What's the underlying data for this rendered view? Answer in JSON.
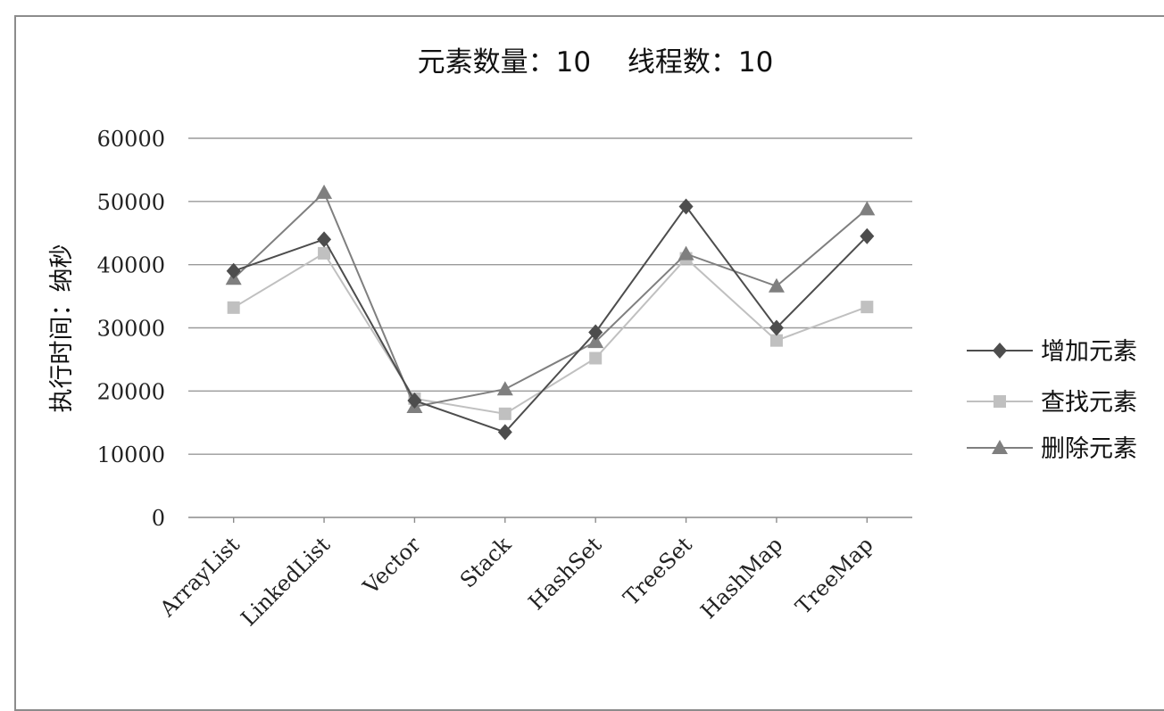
{
  "chart_data": {
    "type": "line",
    "title": "元素数量：10　 线程数：10",
    "xlabel": "",
    "ylabel": "执行时间：纳秒",
    "categories": [
      "ArrayList",
      "LinkedList",
      "Vector",
      "Stack",
      "HashSet",
      "TreeSet",
      "HashMap",
      "TreeMap"
    ],
    "ylim": [
      0,
      60000
    ],
    "yticks": [
      0,
      10000,
      20000,
      30000,
      40000,
      50000,
      60000
    ],
    "grid": true,
    "legend_position": "right",
    "series": [
      {
        "name": "增加元素",
        "marker": "diamond",
        "color": "#4d4d4d",
        "values": [
          39000,
          44000,
          18500,
          13500,
          29300,
          49200,
          30000,
          44500
        ]
      },
      {
        "name": "查找元素",
        "marker": "square",
        "color": "#c0c0c0",
        "values": [
          33200,
          41800,
          18800,
          16400,
          25200,
          41000,
          28000,
          33300
        ]
      },
      {
        "name": "删除元素",
        "marker": "triangle",
        "color": "#7f7f7f",
        "values": [
          37800,
          51400,
          17500,
          20300,
          27800,
          41700,
          36600,
          48800
        ]
      }
    ]
  }
}
